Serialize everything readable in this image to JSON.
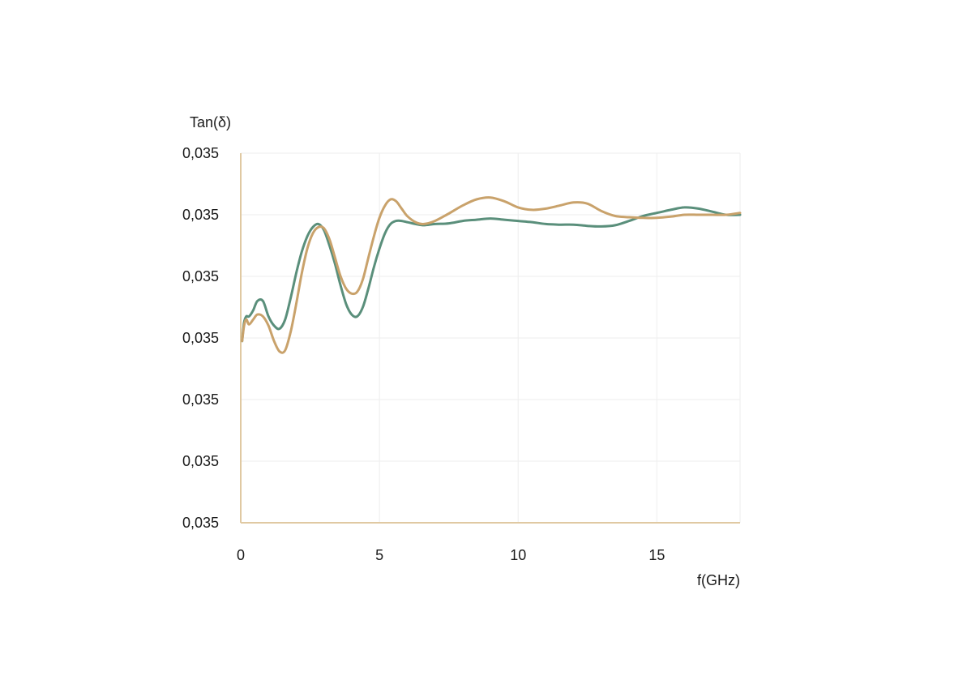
{
  "chart_data": {
    "type": "line",
    "xlabel": "f(GHz)",
    "ylabel": "Tan(δ)",
    "xlim": [
      0,
      18
    ],
    "x_ticks": [
      0,
      5,
      10,
      15
    ],
    "x_tick_labels": [
      "0",
      "5",
      "10",
      "15"
    ],
    "y_tick_labels": [
      "0,035",
      "0,035",
      "0,035",
      "0,035",
      "0,035",
      "0,035",
      "0,035"
    ],
    "ylim": [
      0,
      6
    ],
    "grid": true,
    "colors": {
      "green": "#5a8f7b",
      "tan": "#c9a26b",
      "axis": "#e0c9a2",
      "grid": "#eeeeee"
    },
    "series": [
      {
        "color": "#5a8f7b",
        "x": [
          0.05,
          0.12,
          0.2,
          0.3,
          0.45,
          0.6,
          0.8,
          1.0,
          1.2,
          1.4,
          1.6,
          1.8,
          2.0,
          2.2,
          2.4,
          2.6,
          2.8,
          3.0,
          3.2,
          3.4,
          3.6,
          3.8,
          4.0,
          4.2,
          4.4,
          4.6,
          4.8,
          5.0,
          5.2,
          5.4,
          5.6,
          5.8,
          6.0,
          6.3,
          6.6,
          7.0,
          7.5,
          8.0,
          8.5,
          9.0,
          9.5,
          10.0,
          10.5,
          11.0,
          11.5,
          12.0,
          12.5,
          13.0,
          13.5,
          14.0,
          14.5,
          15.0,
          15.5,
          16.0,
          16.5,
          17.0,
          17.5,
          18.0
        ],
        "y": [
          2.95,
          3.25,
          3.35,
          3.35,
          3.45,
          3.6,
          3.6,
          3.35,
          3.2,
          3.15,
          3.3,
          3.65,
          4.05,
          4.4,
          4.65,
          4.8,
          4.85,
          4.75,
          4.5,
          4.2,
          3.85,
          3.55,
          3.38,
          3.35,
          3.5,
          3.8,
          4.15,
          4.45,
          4.7,
          4.85,
          4.9,
          4.9,
          4.88,
          4.85,
          4.83,
          4.85,
          4.86,
          4.9,
          4.92,
          4.94,
          4.92,
          4.9,
          4.88,
          4.85,
          4.84,
          4.84,
          4.82,
          4.81,
          4.83,
          4.9,
          4.98,
          5.03,
          5.08,
          5.12,
          5.1,
          5.05,
          5.0,
          5.0
        ]
      },
      {
        "color": "#c9a26b",
        "x": [
          0.05,
          0.12,
          0.2,
          0.3,
          0.45,
          0.6,
          0.8,
          1.0,
          1.2,
          1.4,
          1.6,
          1.8,
          2.0,
          2.2,
          2.4,
          2.6,
          2.8,
          3.0,
          3.2,
          3.4,
          3.6,
          3.8,
          4.0,
          4.2,
          4.4,
          4.6,
          4.8,
          5.0,
          5.2,
          5.4,
          5.6,
          5.8,
          6.0,
          6.3,
          6.6,
          7.0,
          7.5,
          8.0,
          8.5,
          9.0,
          9.5,
          10.0,
          10.5,
          11.0,
          11.5,
          12.0,
          12.5,
          13.0,
          13.5,
          14.0,
          14.5,
          15.0,
          15.5,
          16.0,
          16.5,
          17.0,
          17.5,
          18.0
        ],
        "y": [
          2.95,
          3.2,
          3.3,
          3.22,
          3.3,
          3.38,
          3.35,
          3.2,
          2.95,
          2.78,
          2.8,
          3.1,
          3.55,
          4.05,
          4.45,
          4.7,
          4.8,
          4.78,
          4.6,
          4.3,
          4.0,
          3.8,
          3.72,
          3.75,
          3.95,
          4.3,
          4.65,
          4.95,
          5.15,
          5.25,
          5.22,
          5.1,
          4.98,
          4.88,
          4.85,
          4.9,
          5.02,
          5.15,
          5.25,
          5.28,
          5.22,
          5.12,
          5.08,
          5.1,
          5.15,
          5.2,
          5.18,
          5.06,
          4.98,
          4.96,
          4.95,
          4.95,
          4.97,
          5.0,
          5.0,
          5.0,
          5.0,
          5.03
        ]
      }
    ]
  }
}
